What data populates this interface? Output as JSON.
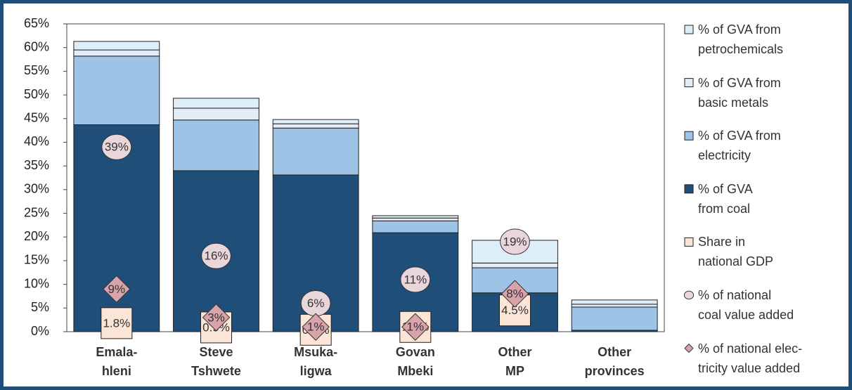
{
  "chart_data": {
    "type": "bar",
    "categories": [
      "Emala-\nhleni",
      "Steve\nTshwete",
      "Msuka-\nligwa",
      "Govan\nMbeki",
      "Other\nMP",
      "Other\nprovinces"
    ],
    "ylim": [
      0,
      65
    ],
    "yticks": [
      {
        "value": 0,
        "label": "0%"
      },
      {
        "value": 5,
        "label": "5%"
      },
      {
        "value": 10,
        "label": "10%"
      },
      {
        "value": 15,
        "label": "15%"
      },
      {
        "value": 20,
        "label": "20%"
      },
      {
        "value": 25,
        "label": "25%"
      },
      {
        "value": 30,
        "label": "30%"
      },
      {
        "value": 35,
        "label": "35%"
      },
      {
        "value": 40,
        "label": "40%"
      },
      {
        "value": 45,
        "label": "45%"
      },
      {
        "value": 50,
        "label": "50%"
      },
      {
        "value": 55,
        "label": "55%"
      },
      {
        "value": 60,
        "label": "60%"
      },
      {
        "value": 65,
        "label": "65%"
      }
    ],
    "series": [
      {
        "name": "% of GVA from\npetrochemicals",
        "color": "#ddeef8",
        "values": [
          1.8,
          2.1,
          0.9,
          0.5,
          4.8,
          0.9
        ]
      },
      {
        "name": "% of GVA from\nbasic metals",
        "color": "#e3ebf6",
        "values": [
          1.3,
          2.5,
          0.9,
          0.6,
          1.0,
          0.6
        ]
      },
      {
        "name": "% of GVA from\nelectricity",
        "color": "#9dc3e6",
        "values": [
          14.5,
          10.7,
          9.9,
          2.5,
          5.3,
          4.9
        ]
      },
      {
        "name": "% of GVA\nfrom coal",
        "color": "#1f4e79",
        "values": [
          43.7,
          34.0,
          33.1,
          20.9,
          8.2,
          0.3
        ]
      },
      {
        "name": "Share in\nnational GDP",
        "color": "#fbe5d6",
        "marker": "square",
        "values": [
          1.8,
          0.9,
          0.4,
          1.0,
          4.5,
          null
        ],
        "value_labels": [
          "1.8%",
          "0.9%",
          "0.4%",
          "1.0%",
          "4.5%",
          null
        ]
      },
      {
        "name": "% of national\ncoal value added",
        "color": "#e8d6da",
        "marker": "circle",
        "values": [
          39,
          16,
          6,
          11,
          19,
          null
        ],
        "value_labels": [
          "39%",
          "16%",
          "6%",
          "11%",
          "19%",
          null
        ]
      },
      {
        "name": "% of national elec-\ntricity value added",
        "color": "#d9a3ab",
        "marker": "diamond",
        "values": [
          9,
          3,
          1,
          1,
          8,
          null
        ],
        "value_labels": [
          "9%",
          "3%",
          "1%",
          "1%",
          "8%",
          null
        ]
      }
    ]
  }
}
